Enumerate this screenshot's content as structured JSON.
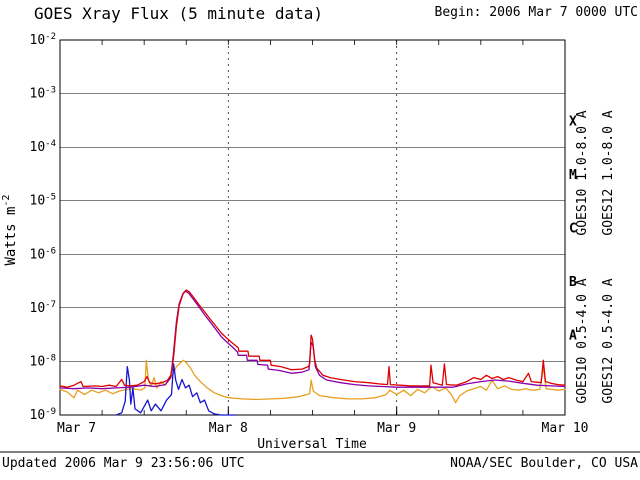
{
  "header": {
    "title": "GOES Xray Flux (5 minute data)",
    "begin": "Begin: 2006 Mar 7 0000 UTC"
  },
  "footer": {
    "updated": "Updated 2006 Mar 9 23:56:06 UTC",
    "credit": "NOAA/SEC Boulder, CO USA"
  },
  "chart_data": {
    "type": "line",
    "title": "GOES Xray Flux (5 minute data)",
    "xlabel": "Universal Time",
    "ylabel_base": "Watts m",
    "ylabel_exp": "-2",
    "x_unit": "hours since 2006 Mar 7 0000 UTC",
    "xlim": [
      0,
      72
    ],
    "ylim_log10": [
      -9,
      -2
    ],
    "y_scale": "log",
    "y_ticks": [
      -2,
      -3,
      -4,
      -5,
      -6,
      -7,
      -8,
      -9
    ],
    "x_ticks": [
      {
        "hour": 0,
        "label": "Mar 7"
      },
      {
        "hour": 24,
        "label": "Mar 8"
      },
      {
        "hour": 48,
        "label": "Mar 9"
      },
      {
        "hour": 72,
        "label": "Mar 10"
      }
    ],
    "x_minor_tick_hours": 6,
    "grid": {
      "h_lines_log10": [
        -2,
        -3,
        -4,
        -5,
        -6,
        -7,
        -8,
        -9
      ],
      "v_dashed_hours": [
        24,
        48
      ]
    },
    "flare_classes": [
      {
        "label": "X",
        "log10_center": -3.5
      },
      {
        "label": "M",
        "log10_center": -4.5
      },
      {
        "label": "C",
        "log10_center": -5.5
      },
      {
        "label": "B",
        "log10_center": -6.5
      },
      {
        "label": "A",
        "log10_center": -7.5
      }
    ],
    "series": [
      {
        "label": "GOES10 0.5-4.0 A",
        "satellite": "GOES10",
        "channel": "0.5-4.0 A",
        "color": "#e8a020",
        "points": [
          [
            0,
            3e-09
          ],
          [
            1,
            2.7e-09
          ],
          [
            2,
            2.1e-09
          ],
          [
            2.5,
            2.9e-09
          ],
          [
            3.5,
            2.4e-09
          ],
          [
            4.5,
            2.9e-09
          ],
          [
            5.5,
            2.6e-09
          ],
          [
            6.5,
            2.9e-09
          ],
          [
            7.5,
            2.5e-09
          ],
          [
            8.5,
            2.8e-09
          ],
          [
            9.5,
            3e-09
          ],
          [
            10.5,
            3.1e-09
          ],
          [
            11.5,
            2.9e-09
          ],
          [
            12.1,
            3.2e-09
          ],
          [
            12.3,
            1.05e-08
          ],
          [
            12.6,
            4.5e-09
          ],
          [
            13,
            3.4e-09
          ],
          [
            13.4,
            5e-09
          ],
          [
            13.8,
            3.2e-09
          ],
          [
            14.4,
            4.2e-09
          ],
          [
            15,
            3.6e-09
          ],
          [
            15.6,
            4.6e-09
          ],
          [
            16.2,
            6e-09
          ],
          [
            16.6,
            8e-09
          ],
          [
            17.2,
            9.5e-09
          ],
          [
            17.6,
            1.05e-08
          ],
          [
            18,
            9.5e-09
          ],
          [
            18.6,
            7.5e-09
          ],
          [
            19.2,
            5.5e-09
          ],
          [
            20,
            4.2e-09
          ],
          [
            21,
            3.2e-09
          ],
          [
            22,
            2.6e-09
          ],
          [
            23,
            2.3e-09
          ],
          [
            24,
            2.1e-09
          ],
          [
            26,
            2e-09
          ],
          [
            28,
            1.95e-09
          ],
          [
            30,
            2e-09
          ],
          [
            32,
            2.05e-09
          ],
          [
            34,
            2.2e-09
          ],
          [
            35.6,
            2.5e-09
          ],
          [
            35.8,
            4.5e-09
          ],
          [
            36.1,
            2.8e-09
          ],
          [
            37,
            2.3e-09
          ],
          [
            39,
            2.1e-09
          ],
          [
            41,
            2e-09
          ],
          [
            43,
            2e-09
          ],
          [
            45,
            2.1e-09
          ],
          [
            46.5,
            2.4e-09
          ],
          [
            47,
            2.9e-09
          ],
          [
            48,
            2.4e-09
          ],
          [
            49,
            2.9e-09
          ],
          [
            50,
            2.3e-09
          ],
          [
            51,
            3e-09
          ],
          [
            52,
            2.6e-09
          ],
          [
            53,
            3.4e-09
          ],
          [
            54,
            2.8e-09
          ],
          [
            55,
            3.2e-09
          ],
          [
            55.8,
            2.4e-09
          ],
          [
            56.4,
            1.7e-09
          ],
          [
            57,
            2.3e-09
          ],
          [
            58,
            2.8e-09
          ],
          [
            59,
            3.1e-09
          ],
          [
            60,
            3.4e-09
          ],
          [
            60.8,
            2.9e-09
          ],
          [
            61.6,
            4.4e-09
          ],
          [
            62.4,
            3.1e-09
          ],
          [
            63.4,
            3.5e-09
          ],
          [
            64.4,
            3e-09
          ],
          [
            65.4,
            2.9e-09
          ],
          [
            66.4,
            3.1e-09
          ],
          [
            67.4,
            2.9e-09
          ],
          [
            68.4,
            3e-09
          ],
          [
            68.9,
            8e-09
          ],
          [
            69.3,
            3.1e-09
          ],
          [
            70.2,
            3e-09
          ],
          [
            71,
            2.9e-09
          ],
          [
            72,
            3e-09
          ]
        ]
      },
      {
        "label": "GOES12 0.5-4.0 A",
        "satellite": "GOES12",
        "channel": "0.5-4.0 A",
        "color": "#1515d0",
        "points": [
          [
            8,
            9.5e-10
          ],
          [
            8.8,
            1.1e-09
          ],
          [
            9.3,
            1.8e-09
          ],
          [
            9.6,
            8e-09
          ],
          [
            9.9,
            4.5e-09
          ],
          [
            10.1,
            1.6e-09
          ],
          [
            10.4,
            3.2e-09
          ],
          [
            10.7,
            1.3e-09
          ],
          [
            11.5,
            1.1e-09
          ],
          [
            12.5,
            1.9e-09
          ],
          [
            13,
            1.2e-09
          ],
          [
            13.6,
            1.6e-09
          ],
          [
            14.4,
            1.2e-09
          ],
          [
            15.2,
            1.9e-09
          ],
          [
            15.9,
            2.4e-09
          ],
          [
            16.2,
            9e-09
          ],
          [
            16.5,
            4.5e-09
          ],
          [
            16.9,
            3e-09
          ],
          [
            17.4,
            4.6e-09
          ],
          [
            17.9,
            3.2e-09
          ],
          [
            18.4,
            3.6e-09
          ],
          [
            18.9,
            2.2e-09
          ],
          [
            19.5,
            2.6e-09
          ],
          [
            20,
            1.7e-09
          ],
          [
            20.6,
            1.9e-09
          ],
          [
            21.2,
            1.2e-09
          ],
          [
            22,
            1.05e-09
          ],
          [
            23,
            9.5e-10
          ],
          [
            24,
            9e-10
          ],
          [
            25,
            8.5e-10
          ]
        ]
      },
      {
        "label": "GOES10 1.0-8.0 A",
        "satellite": "GOES10",
        "channel": "1.0-8.0 A",
        "color": "#8800aa",
        "points": [
          [
            0,
            3.2e-09
          ],
          [
            2,
            3.1e-09
          ],
          [
            4,
            3.2e-09
          ],
          [
            6,
            3.1e-09
          ],
          [
            8,
            3.2e-09
          ],
          [
            10,
            3.3e-09
          ],
          [
            12,
            3.6e-09
          ],
          [
            13.5,
            3.4e-09
          ],
          [
            15,
            3.7e-09
          ],
          [
            15.8,
            5e-09
          ],
          [
            16.2,
            1.5e-08
          ],
          [
            16.6,
            5.5e-08
          ],
          [
            17,
            1.2e-07
          ],
          [
            17.5,
            1.8e-07
          ],
          [
            17.9,
            2.05e-07
          ],
          [
            18.3,
            1.9e-07
          ],
          [
            19,
            1.45e-07
          ],
          [
            19.8,
            1.05e-07
          ],
          [
            20.6,
            7.5e-08
          ],
          [
            21.4,
            5.5e-08
          ],
          [
            22.2,
            4e-08
          ],
          [
            23,
            2.9e-08
          ],
          [
            23.8,
            2.3e-08
          ],
          [
            24.6,
            1.85e-08
          ],
          [
            25.3,
            1.5e-08
          ],
          [
            25.4,
            1.3e-08
          ],
          [
            26.6,
            1.3e-08
          ],
          [
            26.7,
            1.05e-08
          ],
          [
            28.1,
            1.05e-08
          ],
          [
            28.2,
            8.8e-09
          ],
          [
            29.6,
            8.5e-09
          ],
          [
            29.7,
            7.2e-09
          ],
          [
            31.2,
            6.8e-09
          ],
          [
            33,
            6e-09
          ],
          [
            34.5,
            6.3e-09
          ],
          [
            35.5,
            7e-09
          ],
          [
            35.8,
            2.3e-08
          ],
          [
            36.1,
            1.9e-08
          ],
          [
            36.4,
            8e-09
          ],
          [
            37,
            5.5e-09
          ],
          [
            38,
            4.5e-09
          ],
          [
            40,
            4e-09
          ],
          [
            42,
            3.7e-09
          ],
          [
            44,
            3.5e-09
          ],
          [
            46,
            3.4e-09
          ],
          [
            48,
            3.3e-09
          ],
          [
            50,
            3.3e-09
          ],
          [
            52,
            3.3e-09
          ],
          [
            54,
            3.3e-09
          ],
          [
            56,
            3.3e-09
          ],
          [
            58,
            3.8e-09
          ],
          [
            60,
            4.2e-09
          ],
          [
            62,
            4.5e-09
          ],
          [
            64,
            4.3e-09
          ],
          [
            66,
            3.9e-09
          ],
          [
            68,
            3.6e-09
          ],
          [
            70,
            3.5e-09
          ],
          [
            72,
            3.4e-09
          ]
        ]
      },
      {
        "label": "GOES12 1.0-8.0 A",
        "satellite": "GOES12",
        "channel": "1.0-8.0 A",
        "color": "#dd0000",
        "points": [
          [
            0,
            3.5e-09
          ],
          [
            1,
            3.3e-09
          ],
          [
            2,
            3.6e-09
          ],
          [
            3,
            4.2e-09
          ],
          [
            3.3,
            3.4e-09
          ],
          [
            5,
            3.5e-09
          ],
          [
            6,
            3.4e-09
          ],
          [
            7,
            3.6e-09
          ],
          [
            8,
            3.4e-09
          ],
          [
            8.8,
            4.6e-09
          ],
          [
            9.2,
            3.6e-09
          ],
          [
            10,
            3.5e-09
          ],
          [
            11,
            3.6e-09
          ],
          [
            12,
            4.2e-09
          ],
          [
            12.4,
            5.2e-09
          ],
          [
            12.8,
            4e-09
          ],
          [
            13.5,
            3.8e-09
          ],
          [
            14.5,
            4e-09
          ],
          [
            15.3,
            4.4e-09
          ],
          [
            15.8,
            5.5e-09
          ],
          [
            16.2,
            1.2e-08
          ],
          [
            16.6,
            4.5e-08
          ],
          [
            17,
            1.1e-07
          ],
          [
            17.6,
            1.9e-07
          ],
          [
            18,
            2.15e-07
          ],
          [
            18.4,
            2e-07
          ],
          [
            19,
            1.6e-07
          ],
          [
            19.8,
            1.15e-07
          ],
          [
            20.6,
            8.5e-08
          ],
          [
            21.4,
            6.2e-08
          ],
          [
            22.2,
            4.6e-08
          ],
          [
            23,
            3.4e-08
          ],
          [
            23.8,
            2.7e-08
          ],
          [
            24.6,
            2.2e-08
          ],
          [
            25.4,
            1.8e-08
          ],
          [
            25.5,
            1.55e-08
          ],
          [
            26.8,
            1.55e-08
          ],
          [
            26.9,
            1.25e-08
          ],
          [
            28.4,
            1.25e-08
          ],
          [
            28.5,
            1.05e-08
          ],
          [
            30,
            1.05e-08
          ],
          [
            30.1,
            8.5e-09
          ],
          [
            31.5,
            8e-09
          ],
          [
            33,
            7e-09
          ],
          [
            34.5,
            7.2e-09
          ],
          [
            35.4,
            8e-09
          ],
          [
            35.6,
            9e-09
          ],
          [
            35.8,
            3.1e-08
          ],
          [
            36,
            2.6e-08
          ],
          [
            36.3,
            1.1e-08
          ],
          [
            36.6,
            7.5e-09
          ],
          [
            37.5,
            5.5e-09
          ],
          [
            38.5,
            5e-09
          ],
          [
            40,
            4.6e-09
          ],
          [
            42,
            4.2e-09
          ],
          [
            44,
            4e-09
          ],
          [
            45.5,
            3.8e-09
          ],
          [
            46.7,
            3.7e-09
          ],
          [
            46.9,
            8e-09
          ],
          [
            47.1,
            3.7e-09
          ],
          [
            48.5,
            3.6e-09
          ],
          [
            50,
            3.5e-09
          ],
          [
            52,
            3.5e-09
          ],
          [
            52.7,
            3.5e-09
          ],
          [
            52.9,
            8.5e-09
          ],
          [
            53.2,
            4e-09
          ],
          [
            54.5,
            3.6e-09
          ],
          [
            54.8,
            9e-09
          ],
          [
            55.1,
            3.7e-09
          ],
          [
            56.5,
            3.6e-09
          ],
          [
            58,
            4.2e-09
          ],
          [
            59,
            5e-09
          ],
          [
            60,
            4.6e-09
          ],
          [
            60.8,
            5.5e-09
          ],
          [
            61.6,
            4.8e-09
          ],
          [
            62.4,
            5.2e-09
          ],
          [
            63.2,
            4.6e-09
          ],
          [
            64,
            5e-09
          ],
          [
            65,
            4.5e-09
          ],
          [
            66,
            4.2e-09
          ],
          [
            66.8,
            6e-09
          ],
          [
            67.2,
            4.2e-09
          ],
          [
            68.6,
            4e-09
          ],
          [
            68.9,
            1.05e-08
          ],
          [
            69.2,
            4.2e-09
          ],
          [
            70,
            3.9e-09
          ],
          [
            71,
            3.7e-09
          ],
          [
            72,
            3.6e-09
          ]
        ]
      }
    ],
    "legend_position": "right-rotated"
  }
}
